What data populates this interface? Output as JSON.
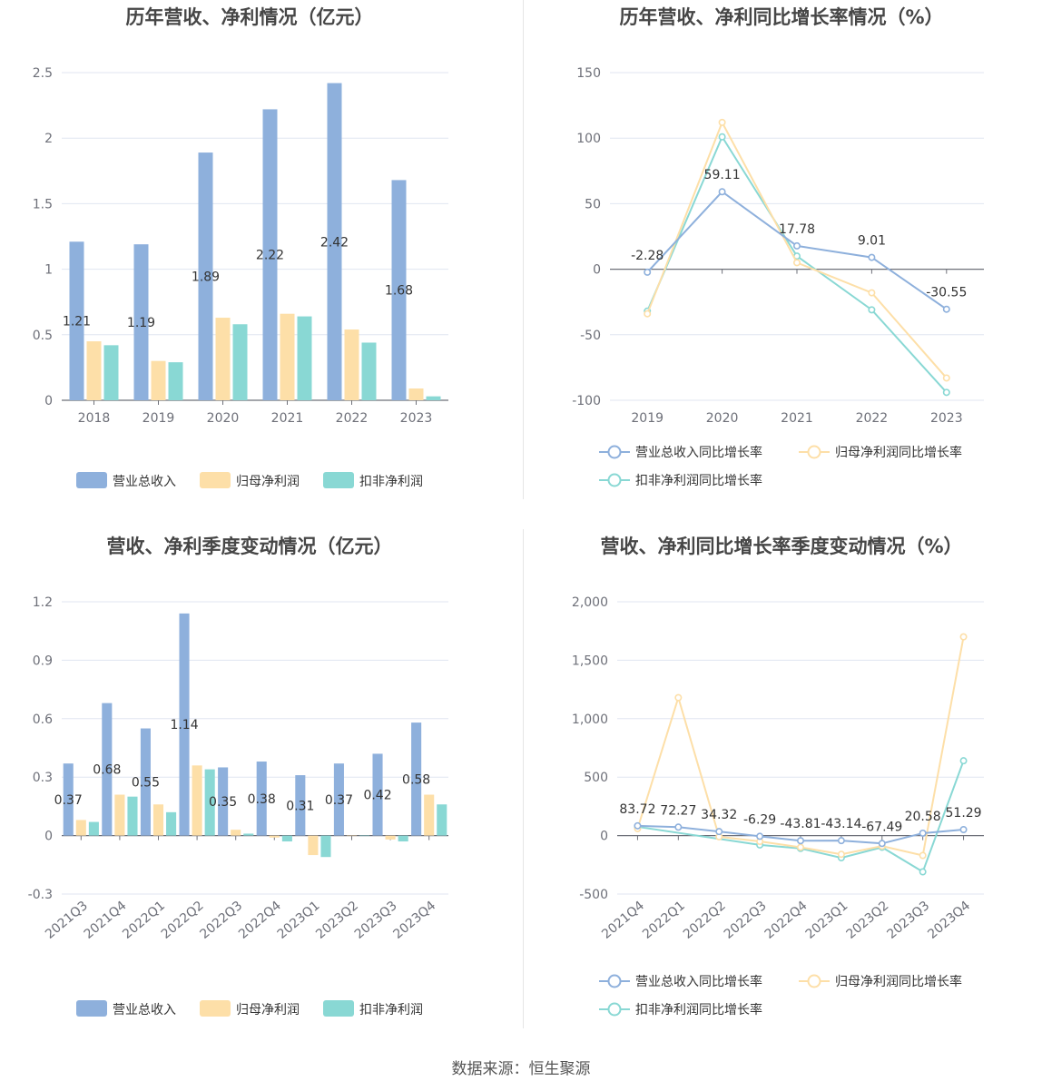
{
  "colors": {
    "revenue": "#8eb0dc",
    "net_profit": "#fddfa8",
    "deducted_profit": "#89d8d4",
    "axis": "#6e7079",
    "grid": "#e0e6f1"
  },
  "source_text": "数据来源：恒生聚源",
  "chart_data": [
    {
      "id": "annual",
      "type": "bar",
      "title": "历年营收、净利情况（亿元）",
      "categories": [
        "2018",
        "2019",
        "2020",
        "2021",
        "2022",
        "2023"
      ],
      "ylim": [
        0,
        2.5
      ],
      "yticks": [
        0,
        0.5,
        1,
        1.5,
        2,
        2.5
      ],
      "ytick_labels": [
        "0",
        "0.5",
        "1",
        "1.5",
        "2",
        "2.5"
      ],
      "labeled_series": 0,
      "grid": true,
      "legend_position": "bottom",
      "series": [
        {
          "name": "营业总收入",
          "values": [
            1.21,
            1.19,
            1.89,
            2.22,
            2.42,
            1.68
          ],
          "labels": [
            "1.21",
            "1.19",
            "1.89",
            "2.22",
            "2.42",
            "1.68"
          ]
        },
        {
          "name": "归母净利润",
          "values": [
            0.45,
            0.3,
            0.63,
            0.66,
            0.54,
            0.09
          ]
        },
        {
          "name": "扣非净利润",
          "values": [
            0.42,
            0.29,
            0.58,
            0.64,
            0.44,
            0.03
          ]
        }
      ]
    },
    {
      "id": "annual_growth",
      "type": "line",
      "title": "历年营收、净利同比增长率情况（%）",
      "categories": [
        "2019",
        "2020",
        "2021",
        "2022",
        "2023"
      ],
      "ylim": [
        -100,
        150
      ],
      "yticks": [
        -100,
        -50,
        0,
        50,
        100,
        150
      ],
      "ytick_labels": [
        "-100",
        "-50",
        "0",
        "50",
        "100",
        "150"
      ],
      "labeled_series": 0,
      "grid": true,
      "legend_position": "bottom",
      "series": [
        {
          "name": "营业总收入同比增长率",
          "values": [
            -2.28,
            59.11,
            17.78,
            9.01,
            -30.55
          ],
          "labels": [
            "-2.28",
            "59.11",
            "17.78",
            "9.01",
            "-30.55"
          ]
        },
        {
          "name": "归母净利润同比增长率",
          "values": [
            -34,
            112,
            5,
            -18,
            -83
          ]
        },
        {
          "name": "扣非净利润同比增长率",
          "values": [
            -32,
            101,
            10,
            -31,
            -94
          ]
        }
      ]
    },
    {
      "id": "quarterly",
      "type": "bar",
      "title": "营收、净利季度变动情况（亿元）",
      "categories": [
        "2021Q3",
        "2021Q4",
        "2022Q1",
        "2022Q2",
        "2022Q3",
        "2022Q4",
        "2023Q1",
        "2023Q2",
        "2023Q3",
        "2023Q4"
      ],
      "ylim": [
        -0.3,
        1.2
      ],
      "yticks": [
        -0.3,
        0,
        0.3,
        0.6,
        0.9,
        1.2
      ],
      "ytick_labels": [
        "-0.3",
        "0",
        "0.3",
        "0.6",
        "0.9",
        "1.2"
      ],
      "labeled_series": 0,
      "grid": true,
      "legend_position": "bottom",
      "series": [
        {
          "name": "营业总收入",
          "values": [
            0.37,
            0.68,
            0.55,
            1.14,
            0.35,
            0.38,
            0.31,
            0.37,
            0.42,
            0.58
          ],
          "labels": [
            "0.37",
            "0.68",
            "0.55",
            "1.14",
            "0.35",
            "0.38",
            "0.31",
            "0.37",
            "0.42",
            "0.58"
          ]
        },
        {
          "name": "归母净利润",
          "values": [
            0.08,
            0.21,
            0.16,
            0.36,
            0.03,
            -0.01,
            -0.1,
            0.0,
            -0.02,
            0.21
          ]
        },
        {
          "name": "扣非净利润",
          "values": [
            0.07,
            0.2,
            0.12,
            0.34,
            0.01,
            -0.03,
            -0.11,
            0.0,
            -0.03,
            0.16
          ]
        }
      ]
    },
    {
      "id": "quarterly_growth",
      "type": "line",
      "title": "营收、净利同比增长率季度变动情况（%）",
      "categories": [
        "2021Q4",
        "2022Q1",
        "2022Q2",
        "2022Q3",
        "2022Q4",
        "2023Q1",
        "2023Q2",
        "2023Q3",
        "2023Q4"
      ],
      "ylim": [
        -500,
        2000
      ],
      "yticks": [
        -500,
        0,
        500,
        1000,
        1500,
        2000
      ],
      "ytick_labels": [
        "-500",
        "0",
        "500",
        "1,000",
        "1,500",
        "2,000"
      ],
      "labeled_series": 0,
      "grid": true,
      "legend_position": "bottom",
      "series": [
        {
          "name": "营业总收入同比增长率",
          "values": [
            83.72,
            72.27,
            34.32,
            -6.29,
            -43.81,
            -43.14,
            -67.49,
            20.58,
            51.29
          ],
          "labels": [
            "83.72",
            "72.27",
            "34.32",
            "-6.29",
            "-43.81",
            "-43.14",
            "-67.49",
            "20.58",
            "51.29"
          ]
        },
        {
          "name": "归母净利润同比增长率",
          "values": [
            60,
            1180,
            -10,
            -50,
            -100,
            -160,
            -90,
            -170,
            1700
          ]
        },
        {
          "name": "扣非净利润同比增长率",
          "values": [
            75,
            null,
            null,
            -80,
            -110,
            -190,
            -100,
            -310,
            640
          ]
        }
      ]
    }
  ]
}
